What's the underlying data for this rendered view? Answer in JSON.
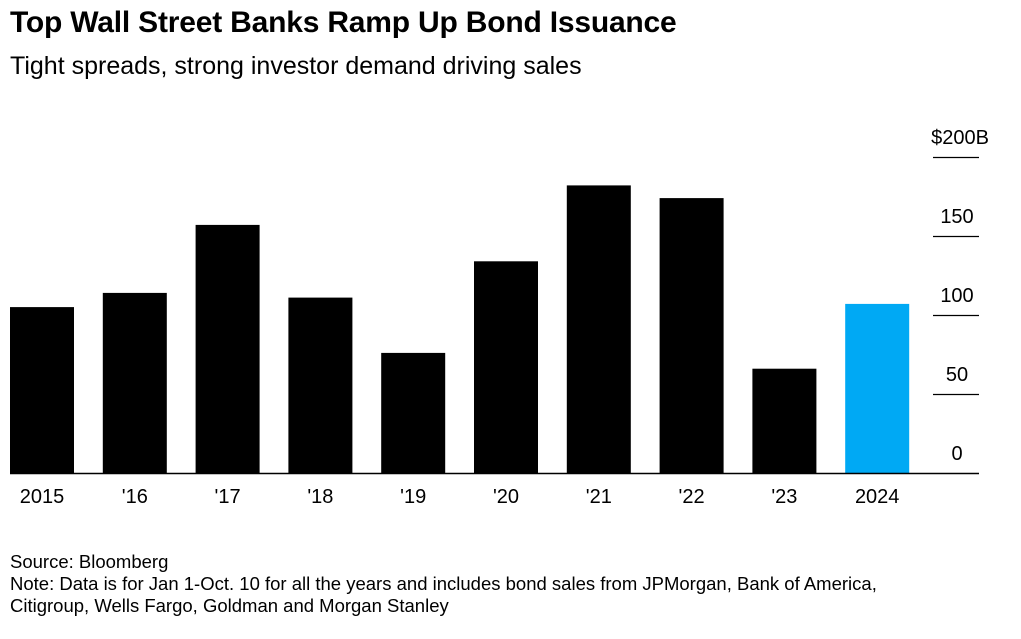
{
  "header": {
    "title": "Top Wall Street Banks Ramp Up Bond Issuance",
    "subtitle": "Tight spreads, strong investor demand driving sales"
  },
  "footer": {
    "source": "Source: Bloomberg",
    "note_line1": "Note: Data is for Jan 1-Oct. 10 for all the years and includes bond sales from JPMorgan, Bank of America,",
    "note_line2": "Citigroup, Wells Fargo, Goldman and Morgan Stanley"
  },
  "colors": {
    "bar": "#000000",
    "highlight": "#00A9F4",
    "axis": "#000000"
  },
  "chart_data": {
    "type": "bar",
    "title": "Top Wall Street Banks Ramp Up Bond Issuance",
    "subtitle": "Tight spreads, strong investor demand driving sales",
    "xlabel": "",
    "ylabel": "",
    "categories": [
      "2015",
      "'16",
      "'17",
      "'18",
      "'19",
      "'20",
      "'21",
      "'22",
      "'23",
      "2024"
    ],
    "values": [
      105,
      114,
      157,
      111,
      76,
      134,
      182,
      174,
      66,
      107
    ],
    "highlight_index": 9,
    "ylim": [
      0,
      200
    ],
    "y_ticks": [
      0,
      50,
      100,
      150,
      200
    ],
    "y_tick_labels": [
      "0",
      "50",
      "100",
      "150",
      "$200B"
    ],
    "axis_position": "right",
    "grid": false
  }
}
